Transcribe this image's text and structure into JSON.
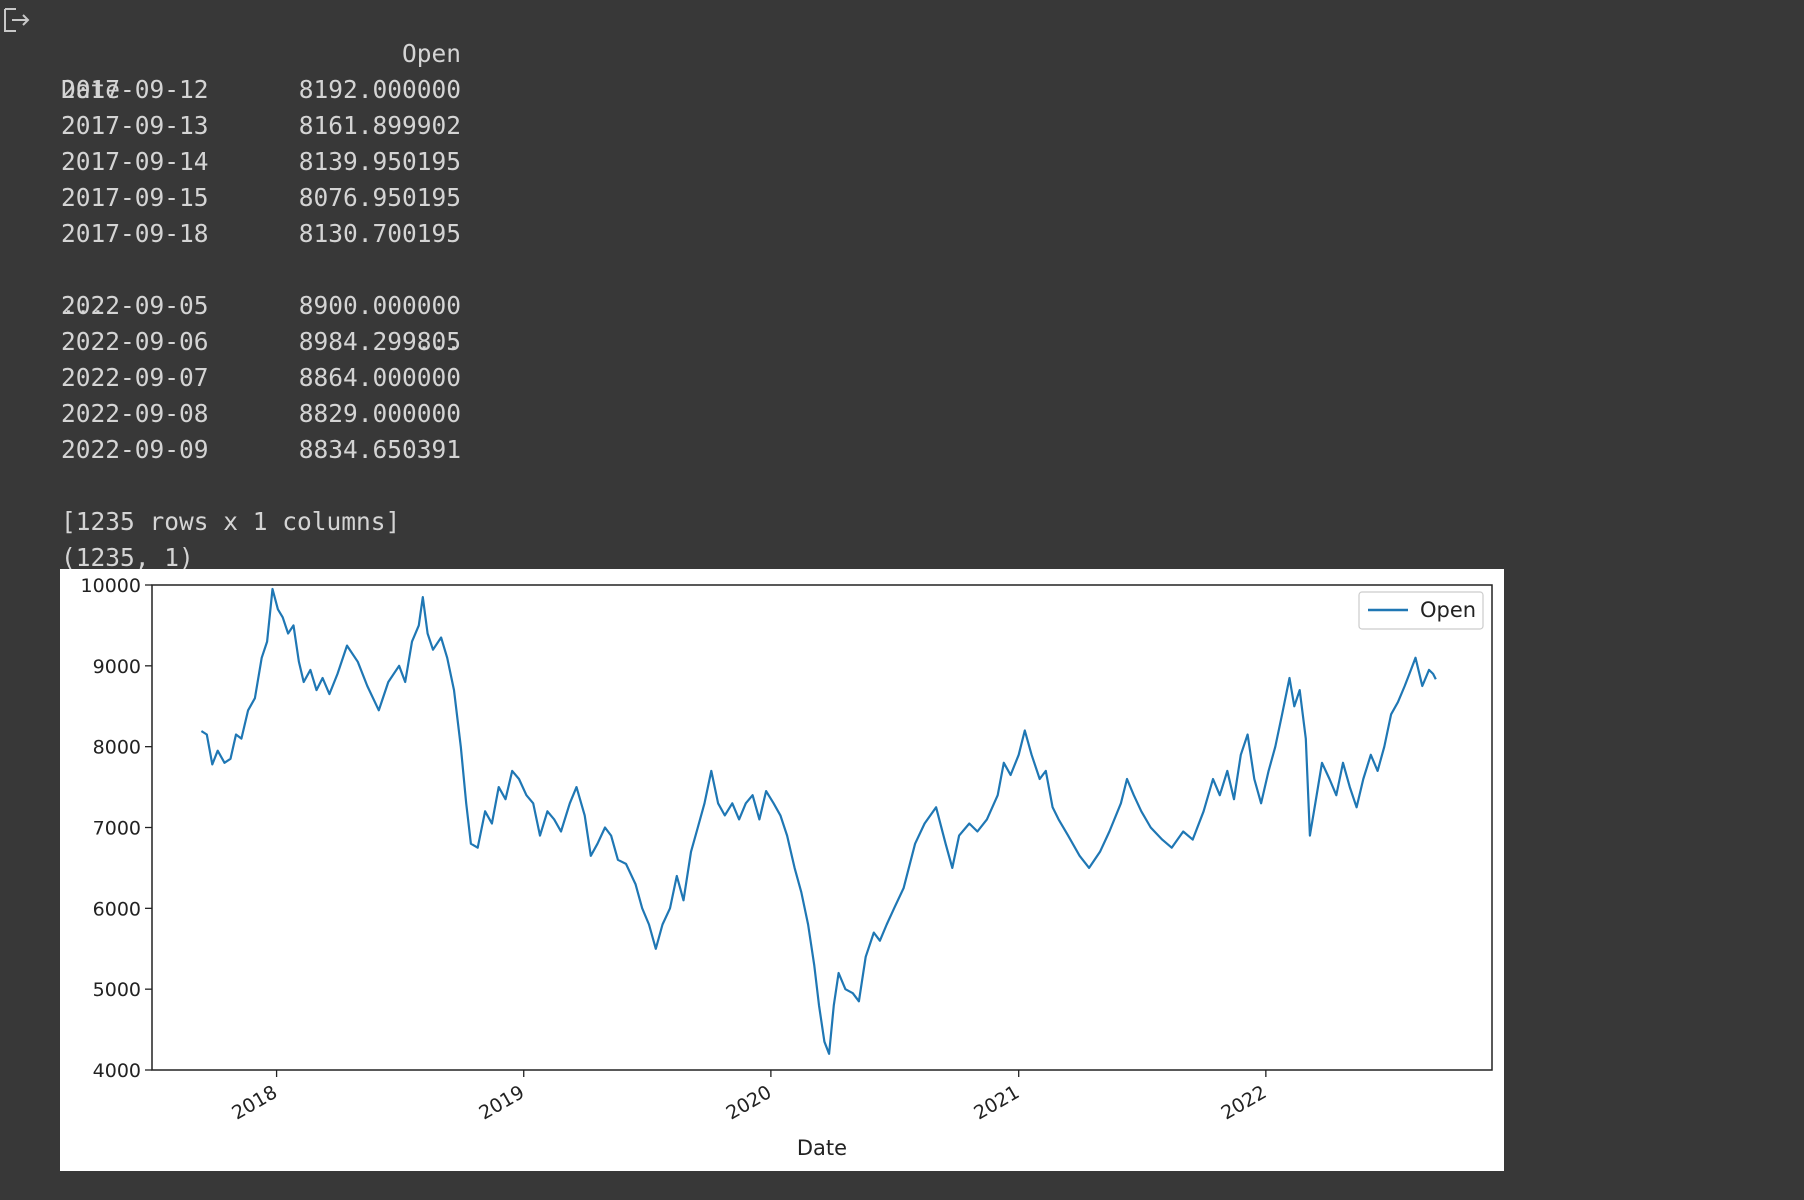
{
  "output": {
    "icon": "output-arrow-icon",
    "dataframe": {
      "column_header": "Open",
      "index_name": "Date",
      "head_rows": [
        {
          "date": "2017-09-12",
          "value": "8192.000000"
        },
        {
          "date": "2017-09-13",
          "value": "8161.899902"
        },
        {
          "date": "2017-09-14",
          "value": "8139.950195"
        },
        {
          "date": "2017-09-15",
          "value": "8076.950195"
        },
        {
          "date": "2017-09-18",
          "value": "8130.700195"
        }
      ],
      "ellipsis_left": "...",
      "ellipsis_right": "...",
      "tail_rows": [
        {
          "date": "2022-09-05",
          "value": "8900.000000"
        },
        {
          "date": "2022-09-06",
          "value": "8984.299805"
        },
        {
          "date": "2022-09-07",
          "value": "8864.000000"
        },
        {
          "date": "2022-09-08",
          "value": "8829.000000"
        },
        {
          "date": "2022-09-09",
          "value": "8834.650391"
        }
      ],
      "summary": "[1235 rows x 1 columns]",
      "shape": "(1235, 1)"
    }
  },
  "chart_data": {
    "type": "line",
    "xlabel": "Date",
    "ylabel": "",
    "ylim": [
      4000,
      10000
    ],
    "yticks": [
      "4000",
      "5000",
      "6000",
      "7000",
      "8000",
      "9000",
      "10000"
    ],
    "xticks": [
      "2018",
      "2019",
      "2020",
      "2021",
      "2022"
    ],
    "xlim": [
      "2017-07-01",
      "2022-12-01"
    ],
    "grid": false,
    "legend": "top-right",
    "line_color": "#1f77b4",
    "series": [
      {
        "name": "Open",
        "points": [
          [
            "2017-09-12",
            8192
          ],
          [
            "2017-09-20",
            8150
          ],
          [
            "2017-09-28",
            7780
          ],
          [
            "2017-10-06",
            7950
          ],
          [
            "2017-10-16",
            7800
          ],
          [
            "2017-10-25",
            7850
          ],
          [
            "2017-11-02",
            8150
          ],
          [
            "2017-11-10",
            8100
          ],
          [
            "2017-11-20",
            8450
          ],
          [
            "2017-11-30",
            8600
          ],
          [
            "2017-12-10",
            9100
          ],
          [
            "2017-12-18",
            9300
          ],
          [
            "2017-12-26",
            9950
          ],
          [
            "2018-01-03",
            9700
          ],
          [
            "2018-01-10",
            9600
          ],
          [
            "2018-01-18",
            9400
          ],
          [
            "2018-01-26",
            9500
          ],
          [
            "2018-02-03",
            9050
          ],
          [
            "2018-02-10",
            8800
          ],
          [
            "2018-02-20",
            8950
          ],
          [
            "2018-03-01",
            8700
          ],
          [
            "2018-03-10",
            8850
          ],
          [
            "2018-03-20",
            8650
          ],
          [
            "2018-04-01",
            8900
          ],
          [
            "2018-04-15",
            9250
          ],
          [
            "2018-05-01",
            9050
          ],
          [
            "2018-05-15",
            8750
          ],
          [
            "2018-06-01",
            8450
          ],
          [
            "2018-06-15",
            8800
          ],
          [
            "2018-07-01",
            9000
          ],
          [
            "2018-07-10",
            8800
          ],
          [
            "2018-07-20",
            9300
          ],
          [
            "2018-07-30",
            9500
          ],
          [
            "2018-08-05",
            9850
          ],
          [
            "2018-08-12",
            9400
          ],
          [
            "2018-08-20",
            9200
          ],
          [
            "2018-09-01",
            9350
          ],
          [
            "2018-09-10",
            9100
          ],
          [
            "2018-09-20",
            8700
          ],
          [
            "2018-09-30",
            8000
          ],
          [
            "2018-10-08",
            7300
          ],
          [
            "2018-10-15",
            6800
          ],
          [
            "2018-10-25",
            6750
          ],
          [
            "2018-11-05",
            7200
          ],
          [
            "2018-11-15",
            7050
          ],
          [
            "2018-11-25",
            7500
          ],
          [
            "2018-12-05",
            7350
          ],
          [
            "2018-12-15",
            7700
          ],
          [
            "2018-12-25",
            7600
          ],
          [
            "2019-01-05",
            7400
          ],
          [
            "2019-01-15",
            7300
          ],
          [
            "2019-01-25",
            6900
          ],
          [
            "2019-02-05",
            7200
          ],
          [
            "2019-02-15",
            7100
          ],
          [
            "2019-02-25",
            6950
          ],
          [
            "2019-03-10",
            7300
          ],
          [
            "2019-03-20",
            7500
          ],
          [
            "2019-04-01",
            7150
          ],
          [
            "2019-04-10",
            6650
          ],
          [
            "2019-04-20",
            6800
          ],
          [
            "2019-05-01",
            7000
          ],
          [
            "2019-05-10",
            6900
          ],
          [
            "2019-05-20",
            6600
          ],
          [
            "2019-06-01",
            6550
          ],
          [
            "2019-06-15",
            6300
          ],
          [
            "2019-06-25",
            6000
          ],
          [
            "2019-07-05",
            5800
          ],
          [
            "2019-07-15",
            5500
          ],
          [
            "2019-07-25",
            5800
          ],
          [
            "2019-08-05",
            6000
          ],
          [
            "2019-08-15",
            6400
          ],
          [
            "2019-08-25",
            6100
          ],
          [
            "2019-09-05",
            6700
          ],
          [
            "2019-09-15",
            7000
          ],
          [
            "2019-09-25",
            7300
          ],
          [
            "2019-10-05",
            7700
          ],
          [
            "2019-10-15",
            7300
          ],
          [
            "2019-10-25",
            7150
          ],
          [
            "2019-11-05",
            7300
          ],
          [
            "2019-11-15",
            7100
          ],
          [
            "2019-11-25",
            7300
          ],
          [
            "2019-12-05",
            7400
          ],
          [
            "2019-12-15",
            7100
          ],
          [
            "2019-12-25",
            7450
          ],
          [
            "2020-01-05",
            7300
          ],
          [
            "2020-01-15",
            7150
          ],
          [
            "2020-01-25",
            6900
          ],
          [
            "2020-02-05",
            6500
          ],
          [
            "2020-02-15",
            6200
          ],
          [
            "2020-02-25",
            5800
          ],
          [
            "2020-03-05",
            5300
          ],
          [
            "2020-03-12",
            4800
          ],
          [
            "2020-03-20",
            4350
          ],
          [
            "2020-03-27",
            4200
          ],
          [
            "2020-04-03",
            4800
          ],
          [
            "2020-04-10",
            5200
          ],
          [
            "2020-04-20",
            5000
          ],
          [
            "2020-05-01",
            4950
          ],
          [
            "2020-05-10",
            4850
          ],
          [
            "2020-05-20",
            5400
          ],
          [
            "2020-06-01",
            5700
          ],
          [
            "2020-06-10",
            5600
          ],
          [
            "2020-06-20",
            5800
          ],
          [
            "2020-07-01",
            6000
          ],
          [
            "2020-07-15",
            6250
          ],
          [
            "2020-08-01",
            6800
          ],
          [
            "2020-08-15",
            7050
          ],
          [
            "2020-09-01",
            7250
          ],
          [
            "2020-09-15",
            6800
          ],
          [
            "2020-09-25",
            6500
          ],
          [
            "2020-10-05",
            6900
          ],
          [
            "2020-10-20",
            7050
          ],
          [
            "2020-11-01",
            6950
          ],
          [
            "2020-11-15",
            7100
          ],
          [
            "2020-12-01",
            7400
          ],
          [
            "2020-12-10",
            7800
          ],
          [
            "2020-12-20",
            7650
          ],
          [
            "2021-01-01",
            7900
          ],
          [
            "2021-01-10",
            8200
          ],
          [
            "2021-01-20",
            7900
          ],
          [
            "2021-02-01",
            7600
          ],
          [
            "2021-02-10",
            7700
          ],
          [
            "2021-02-20",
            7250
          ],
          [
            "2021-03-01",
            7100
          ],
          [
            "2021-03-15",
            6900
          ],
          [
            "2021-04-01",
            6650
          ],
          [
            "2021-04-15",
            6500
          ],
          [
            "2021-05-01",
            6700
          ],
          [
            "2021-05-15",
            6950
          ],
          [
            "2021-06-01",
            7300
          ],
          [
            "2021-06-10",
            7600
          ],
          [
            "2021-06-20",
            7400
          ],
          [
            "2021-07-01",
            7200
          ],
          [
            "2021-07-15",
            7000
          ],
          [
            "2021-08-01",
            6850
          ],
          [
            "2021-08-15",
            6750
          ],
          [
            "2021-09-01",
            6950
          ],
          [
            "2021-09-15",
            6850
          ],
          [
            "2021-10-01",
            7200
          ],
          [
            "2021-10-15",
            7600
          ],
          [
            "2021-10-25",
            7400
          ],
          [
            "2021-11-05",
            7700
          ],
          [
            "2021-11-15",
            7350
          ],
          [
            "2021-11-25",
            7900
          ],
          [
            "2021-12-05",
            8150
          ],
          [
            "2021-12-15",
            7600
          ],
          [
            "2021-12-25",
            7300
          ],
          [
            "2022-01-05",
            7700
          ],
          [
            "2022-01-15",
            8000
          ],
          [
            "2022-01-25",
            8400
          ],
          [
            "2022-02-05",
            8850
          ],
          [
            "2022-02-12",
            8500
          ],
          [
            "2022-02-20",
            8700
          ],
          [
            "2022-03-01",
            8100
          ],
          [
            "2022-03-07",
            6900
          ],
          [
            "2022-03-15",
            7300
          ],
          [
            "2022-03-25",
            7800
          ],
          [
            "2022-04-05",
            7600
          ],
          [
            "2022-04-15",
            7400
          ],
          [
            "2022-04-25",
            7800
          ],
          [
            "2022-05-05",
            7500
          ],
          [
            "2022-05-15",
            7250
          ],
          [
            "2022-05-25",
            7600
          ],
          [
            "2022-06-05",
            7900
          ],
          [
            "2022-06-15",
            7700
          ],
          [
            "2022-06-25",
            8000
          ],
          [
            "2022-07-05",
            8400
          ],
          [
            "2022-07-15",
            8550
          ],
          [
            "2022-07-25",
            8750
          ],
          [
            "2022-08-01",
            8900
          ],
          [
            "2022-08-10",
            9100
          ],
          [
            "2022-08-20",
            8750
          ],
          [
            "2022-08-30",
            8950
          ],
          [
            "2022-09-05",
            8900
          ],
          [
            "2022-09-09",
            8835
          ]
        ]
      }
    ]
  }
}
